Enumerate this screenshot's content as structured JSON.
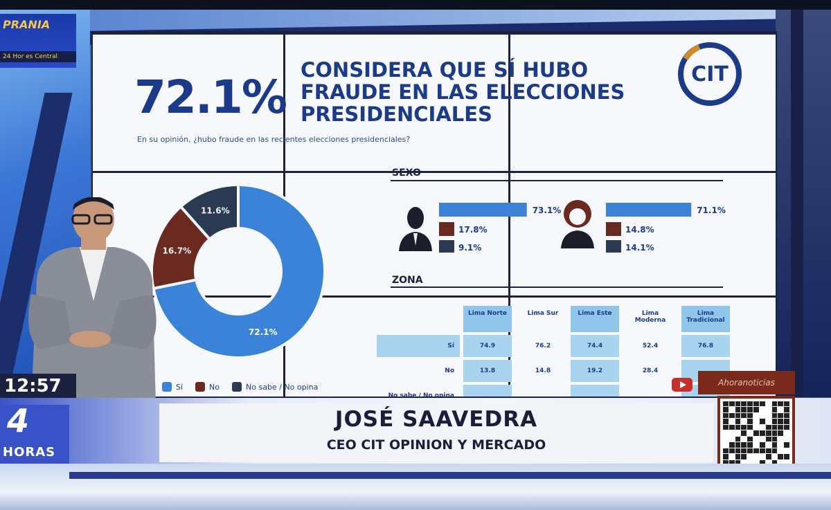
{
  "broadcast": {
    "program_brand": "PRANIA",
    "ticker_text": "24 Hor es Central",
    "time": "12:57",
    "channel_number": "4",
    "channel_sub": "HORAS",
    "follow_text": "Ahoranoticias",
    "lower_third": {
      "name": "JOSÉ SAAVEDRA",
      "role": "CEO CIT OPINION Y MERCADO"
    }
  },
  "poll": {
    "big_percentage": "72.1%",
    "headline": "CONSIDERA QUE SÍ HUBO FRAUDE EN LAS ELECCIONES PRESIDENCIALES",
    "question": "En su opinión, ¿hubo fraude en las recientes elecciones presidenciales?",
    "brand": "CIT"
  },
  "colors": {
    "si": "#3b82d9",
    "no": "#6b2a1f",
    "ns": "#2a3a52",
    "accent": "#1b3a8a"
  },
  "chart_data": [
    {
      "type": "pie",
      "categories": [
        "Sí",
        "No",
        "No sabe / No opina"
      ],
      "values": [
        72.1,
        16.7,
        11.6
      ],
      "labels": [
        "72.1%",
        "16.7%",
        "11.6%"
      ]
    },
    {
      "type": "bar",
      "title": "SEXO",
      "categories": [
        "Sí",
        "No",
        "No sabe / No opina"
      ],
      "series": [
        {
          "values": [
            73.1,
            17.8,
            9.1
          ],
          "labels": [
            "73.1%",
            "17.8%",
            "9.1%"
          ]
        },
        {
          "values": [
            71.1,
            14.8,
            14.1
          ],
          "labels": [
            "71.1%",
            "14.8%",
            "14.1%"
          ]
        }
      ]
    },
    {
      "type": "table",
      "title": "ZONA",
      "columns": [
        "Lima Norte",
        "Lima Sur",
        "Lima Este",
        "Lima Moderna",
        "Lima Tradicional"
      ],
      "rows": [
        {
          "label": "Sí",
          "values": [
            "74.9",
            "76.2",
            "74.4",
            "52.4",
            "76.8"
          ]
        },
        {
          "label": "No",
          "values": [
            "13.8",
            "14.8",
            "19.2",
            "28.4",
            ""
          ]
        },
        {
          "label": "No sabe / No opina",
          "values": [
            "",
            "",
            "",
            "",
            ""
          ]
        }
      ]
    }
  ],
  "legend": [
    "Sí",
    "No",
    "No sabe / No opina"
  ]
}
